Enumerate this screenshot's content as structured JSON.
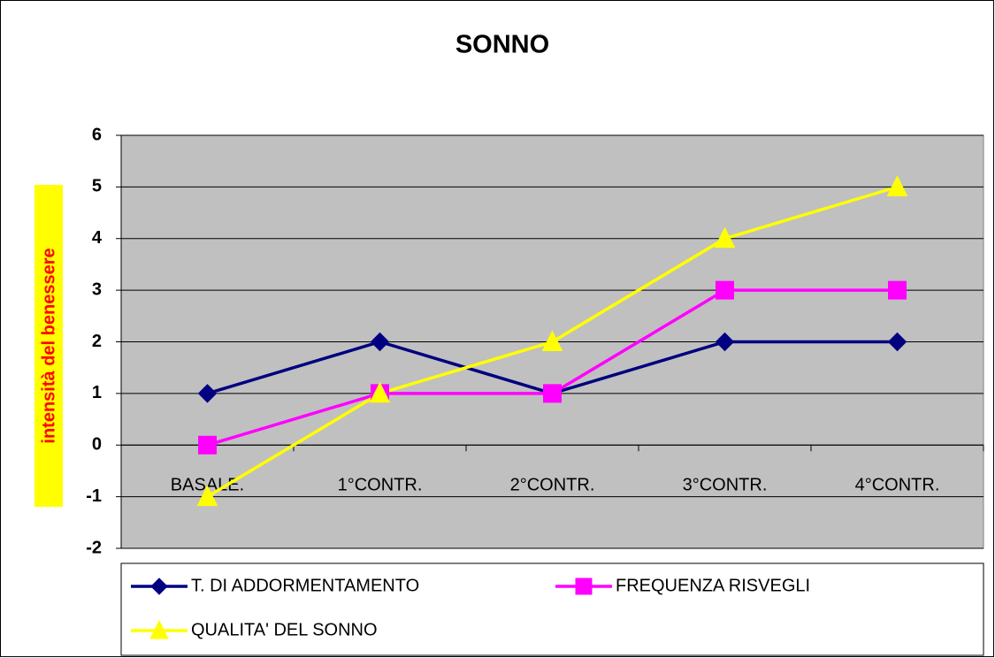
{
  "chart_data": {
    "type": "line",
    "title": "SONNO",
    "y_label": "intensità del benessere",
    "categories": [
      "BASALE.",
      "1°CONTR.",
      "2°CONTR.",
      "3°CONTR.",
      "4°CONTR."
    ],
    "series": [
      {
        "name": "T. DI ADDORMENTAMENTO",
        "color": "#000080",
        "marker": "diamond",
        "values": [
          1,
          2,
          1,
          2,
          2
        ]
      },
      {
        "name": "FREQUENZA RISVEGLI",
        "color": "#ff00ff",
        "marker": "square",
        "values": [
          0,
          1,
          1,
          3,
          3
        ]
      },
      {
        "name": "QUALITA' DEL SONNO",
        "color": "#ffff00",
        "marker": "triangle",
        "values": [
          -1,
          1,
          2,
          4,
          5
        ]
      }
    ],
    "ylim": [
      -2,
      6
    ],
    "yticks": [
      -2,
      -1,
      0,
      1,
      2,
      3,
      4,
      5,
      6
    ],
    "grid": true,
    "plot_background": "#c0c0c0",
    "y_label_background": "#ffff00",
    "y_label_color": "#ff0000"
  }
}
